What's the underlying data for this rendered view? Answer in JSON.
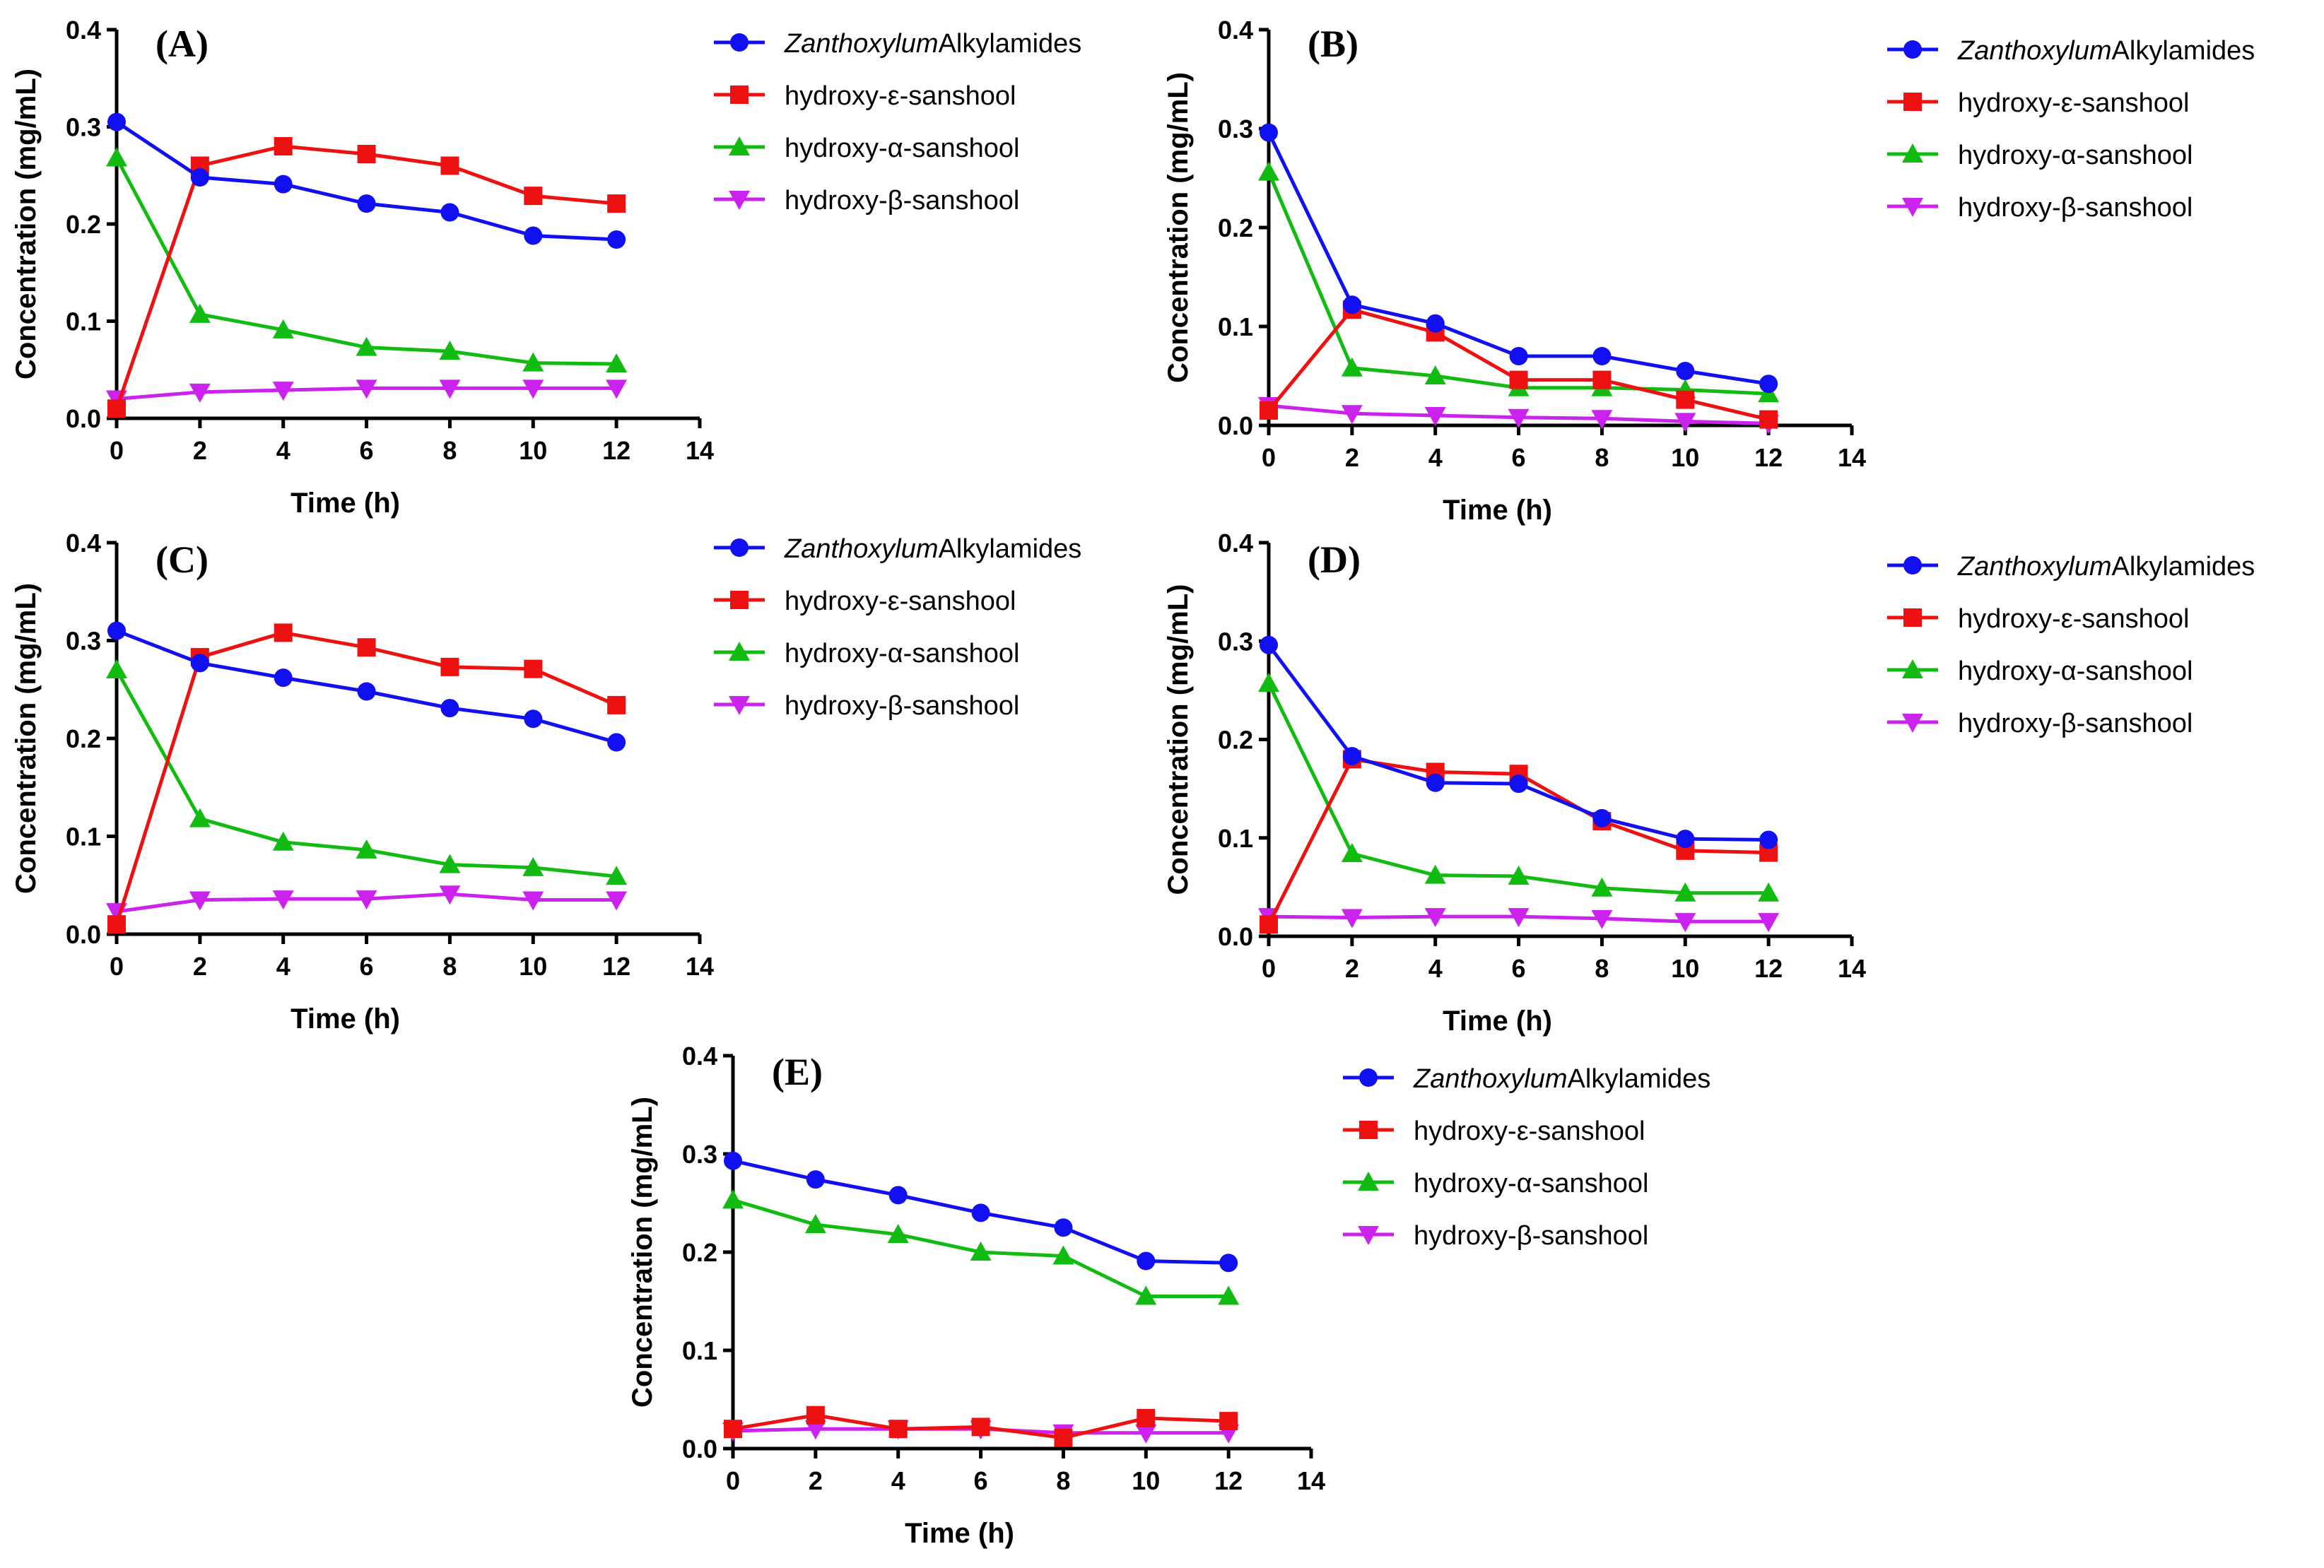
{
  "chart_data": [
    {
      "type": "line",
      "title": "(A)",
      "xlabel": "Time (h)",
      "ylabel": "Concentration (mg/mL)",
      "xlim": [
        0,
        14
      ],
      "ylim": [
        0,
        0.4
      ],
      "xticks": [
        "0",
        "2",
        "4",
        "6",
        "8",
        "10",
        "12",
        "14"
      ],
      "yticks": [
        "0.0",
        "0.1",
        "0.2",
        "0.3",
        "0.4"
      ],
      "x": [
        0,
        2,
        4,
        6,
        8,
        10,
        12
      ],
      "series": [
        {
          "name_italic": "Zanthoxylum",
          "name": "Alkylamides",
          "color": "#1010f0",
          "marker": "circle",
          "values": [
            0.305,
            0.248,
            0.241,
            0.221,
            0.212,
            0.188,
            0.184
          ]
        },
        {
          "name": "hydroxy-ε-sanshool",
          "color": "#ee1111",
          "marker": "square",
          "values": [
            0.01,
            0.26,
            0.28,
            0.272,
            0.26,
            0.229,
            0.221
          ]
        },
        {
          "name": "hydroxy-α-sanshool",
          "color": "#11bb11",
          "marker": "triangle-up",
          "values": [
            0.268,
            0.107,
            0.091,
            0.073,
            0.069,
            0.057,
            0.056
          ]
        },
        {
          "name": "hydroxy-β-sanshool",
          "color": "#cc22ee",
          "marker": "triangle-down",
          "values": [
            0.02,
            0.027,
            0.029,
            0.031,
            0.031,
            0.031,
            0.031
          ]
        }
      ]
    },
    {
      "type": "line",
      "title": "(B)",
      "xlabel": "Time (h)",
      "ylabel": "Concentration (mg/mL)",
      "xlim": [
        0,
        14
      ],
      "ylim": [
        0,
        0.4
      ],
      "xticks": [
        "0",
        "2",
        "4",
        "6",
        "8",
        "10",
        "12",
        "14"
      ],
      "yticks": [
        "0.0",
        "0.1",
        "0.2",
        "0.3",
        "0.4"
      ],
      "x": [
        0,
        2,
        4,
        6,
        8,
        10,
        12
      ],
      "series": [
        {
          "name_italic": "Zanthoxylum",
          "name": "Alkylamides",
          "color": "#1010f0",
          "marker": "circle",
          "values": [
            0.296,
            0.122,
            0.103,
            0.07,
            0.07,
            0.055,
            0.042
          ]
        },
        {
          "name": "hydroxy-ε-sanshool",
          "color": "#ee1111",
          "marker": "square",
          "values": [
            0.015,
            0.117,
            0.094,
            0.046,
            0.046,
            0.026,
            0.006
          ]
        },
        {
          "name": "hydroxy-α-sanshool",
          "color": "#11bb11",
          "marker": "triangle-up",
          "values": [
            0.256,
            0.058,
            0.05,
            0.038,
            0.038,
            0.036,
            0.032
          ]
        },
        {
          "name": "hydroxy-β-sanshool",
          "color": "#cc22ee",
          "marker": "triangle-down",
          "values": [
            0.02,
            0.012,
            0.01,
            0.008,
            0.007,
            0.004,
            0.002
          ]
        }
      ]
    },
    {
      "type": "line",
      "title": "(C)",
      "xlabel": "Time (h)",
      "ylabel": "Concentration (mg/mL)",
      "xlim": [
        0,
        14
      ],
      "ylim": [
        0,
        0.4
      ],
      "xticks": [
        "0",
        "2",
        "4",
        "6",
        "8",
        "10",
        "12",
        "14"
      ],
      "yticks": [
        "0.0",
        "0.1",
        "0.2",
        "0.3",
        "0.4"
      ],
      "x": [
        0,
        2,
        4,
        6,
        8,
        10,
        12
      ],
      "series": [
        {
          "name_italic": "Zanthoxylum",
          "name": "Alkylamides",
          "color": "#1010f0",
          "marker": "circle",
          "values": [
            0.31,
            0.277,
            0.262,
            0.248,
            0.231,
            0.22,
            0.196
          ]
        },
        {
          "name": "hydroxy-ε-sanshool",
          "color": "#ee1111",
          "marker": "square",
          "values": [
            0.01,
            0.283,
            0.308,
            0.293,
            0.273,
            0.271,
            0.234
          ]
        },
        {
          "name": "hydroxy-α-sanshool",
          "color": "#11bb11",
          "marker": "triangle-up",
          "values": [
            0.27,
            0.118,
            0.094,
            0.086,
            0.071,
            0.068,
            0.059
          ]
        },
        {
          "name": "hydroxy-β-sanshool",
          "color": "#cc22ee",
          "marker": "triangle-down",
          "values": [
            0.023,
            0.035,
            0.036,
            0.036,
            0.041,
            0.035,
            0.035
          ]
        }
      ]
    },
    {
      "type": "line",
      "title": "(D)",
      "xlabel": "Time (h)",
      "ylabel": "Concentration (mg/mL)",
      "xlim": [
        0,
        14
      ],
      "ylim": [
        0,
        0.4
      ],
      "xticks": [
        "0",
        "2",
        "4",
        "6",
        "8",
        "10",
        "12",
        "14"
      ],
      "yticks": [
        "0.0",
        "0.1",
        "0.2",
        "0.3",
        "0.4"
      ],
      "x": [
        0,
        2,
        4,
        6,
        8,
        10,
        12
      ],
      "series": [
        {
          "name_italic": "Zanthoxylum",
          "name": "Alkylamides",
          "color": "#1010f0",
          "marker": "circle",
          "values": [
            0.296,
            0.183,
            0.156,
            0.155,
            0.12,
            0.099,
            0.098
          ]
        },
        {
          "name": "hydroxy-ε-sanshool",
          "color": "#ee1111",
          "marker": "square",
          "values": [
            0.012,
            0.18,
            0.167,
            0.165,
            0.117,
            0.087,
            0.085
          ]
        },
        {
          "name": "hydroxy-α-sanshool",
          "color": "#11bb11",
          "marker": "triangle-up",
          "values": [
            0.257,
            0.084,
            0.062,
            0.061,
            0.049,
            0.044,
            0.044
          ]
        },
        {
          "name": "hydroxy-β-sanshool",
          "color": "#cc22ee",
          "marker": "triangle-down",
          "values": [
            0.02,
            0.019,
            0.02,
            0.02,
            0.018,
            0.015,
            0.015
          ]
        }
      ]
    },
    {
      "type": "line",
      "title": "(E)",
      "xlabel": "Time (h)",
      "ylabel": "Concentration (mg/mL)",
      "xlim": [
        0,
        14
      ],
      "ylim": [
        0,
        0.4
      ],
      "xticks": [
        "0",
        "2",
        "4",
        "6",
        "8",
        "10",
        "12",
        "14"
      ],
      "yticks": [
        "0.0",
        "0.1",
        "0.2",
        "0.3",
        "0.4"
      ],
      "x": [
        0,
        2,
        4,
        6,
        8,
        10,
        12
      ],
      "series": [
        {
          "name_italic": "Zanthoxylum",
          "name": "Alkylamides",
          "color": "#1010f0",
          "marker": "circle",
          "values": [
            0.293,
            0.274,
            0.258,
            0.24,
            0.225,
            0.191,
            0.189
          ]
        },
        {
          "name": "hydroxy-ε-sanshool",
          "color": "#ee1111",
          "marker": "square",
          "values": [
            0.02,
            0.034,
            0.02,
            0.022,
            0.011,
            0.031,
            0.028
          ]
        },
        {
          "name": "hydroxy-α-sanshool",
          "color": "#11bb11",
          "marker": "triangle-up",
          "values": [
            0.253,
            0.228,
            0.218,
            0.2,
            0.196,
            0.155,
            0.155
          ]
        },
        {
          "name": "hydroxy-β-sanshool",
          "color": "#cc22ee",
          "marker": "triangle-down",
          "values": [
            0.018,
            0.02,
            0.02,
            0.02,
            0.016,
            0.016,
            0.016
          ]
        }
      ]
    }
  ]
}
